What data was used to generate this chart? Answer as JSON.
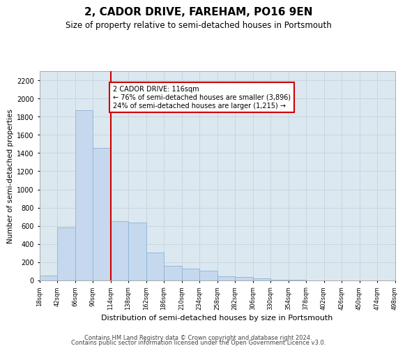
{
  "title": "2, CADOR DRIVE, FAREHAM, PO16 9EN",
  "subtitle": "Size of property relative to semi-detached houses in Portsmouth",
  "xlabel": "Distribution of semi-detached houses by size in Portsmouth",
  "ylabel": "Number of semi-detached properties",
  "annotation_text": "2 CADOR DRIVE: 116sqm\n← 76% of semi-detached houses are smaller (3,896)\n24% of semi-detached houses are larger (1,215) →",
  "bin_edges": [
    18,
    42,
    66,
    90,
    114,
    138,
    162,
    186,
    210,
    234,
    258,
    282,
    306,
    330,
    354,
    378,
    402,
    426,
    450,
    474,
    498
  ],
  "bar_values": [
    55,
    580,
    1870,
    1460,
    650,
    640,
    310,
    160,
    130,
    110,
    45,
    35,
    25,
    10,
    5,
    2,
    1,
    0,
    0,
    0
  ],
  "bar_color": "#c5d8ee",
  "bar_edge_color": "#8ab4d8",
  "vline_color": "#cc0000",
  "vline_x": 114,
  "box_facecolor": "white",
  "box_edgecolor": "#cc0000",
  "ylim": [
    0,
    2300
  ],
  "yticks": [
    0,
    200,
    400,
    600,
    800,
    1000,
    1200,
    1400,
    1600,
    1800,
    2000,
    2200
  ],
  "grid_color": "#c8d4e0",
  "bg_color": "#dce8f0",
  "footer1": "Contains HM Land Registry data © Crown copyright and database right 2024.",
  "footer2": "Contains public sector information licensed under the Open Government Licence v3.0."
}
